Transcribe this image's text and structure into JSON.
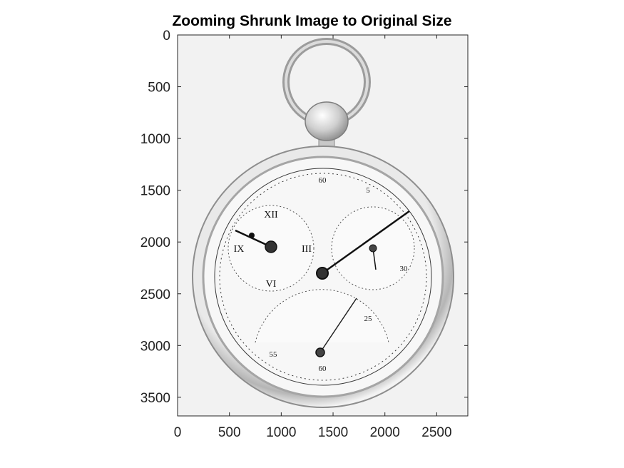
{
  "title": "Zooming Shrunk Image to Original Size",
  "image": {
    "subject": "pocket watch",
    "colormap": "grayscale",
    "dial_labels": [
      "60",
      "5",
      "30",
      "55",
      "25",
      "60"
    ]
  },
  "axes": {
    "x_ticks": [
      "0",
      "500",
      "1000",
      "1500",
      "2000",
      "2500"
    ],
    "y_ticks": [
      "0",
      "500",
      "1000",
      "1500",
      "2000",
      "2500",
      "3000",
      "3500"
    ],
    "xlim": [
      0,
      2800
    ],
    "ylim": [
      0,
      3680
    ],
    "y_direction": "reverse"
  },
  "colors": {
    "axis": "#262626",
    "background": "#ffffff",
    "image_bg": "#f2f2f2"
  }
}
